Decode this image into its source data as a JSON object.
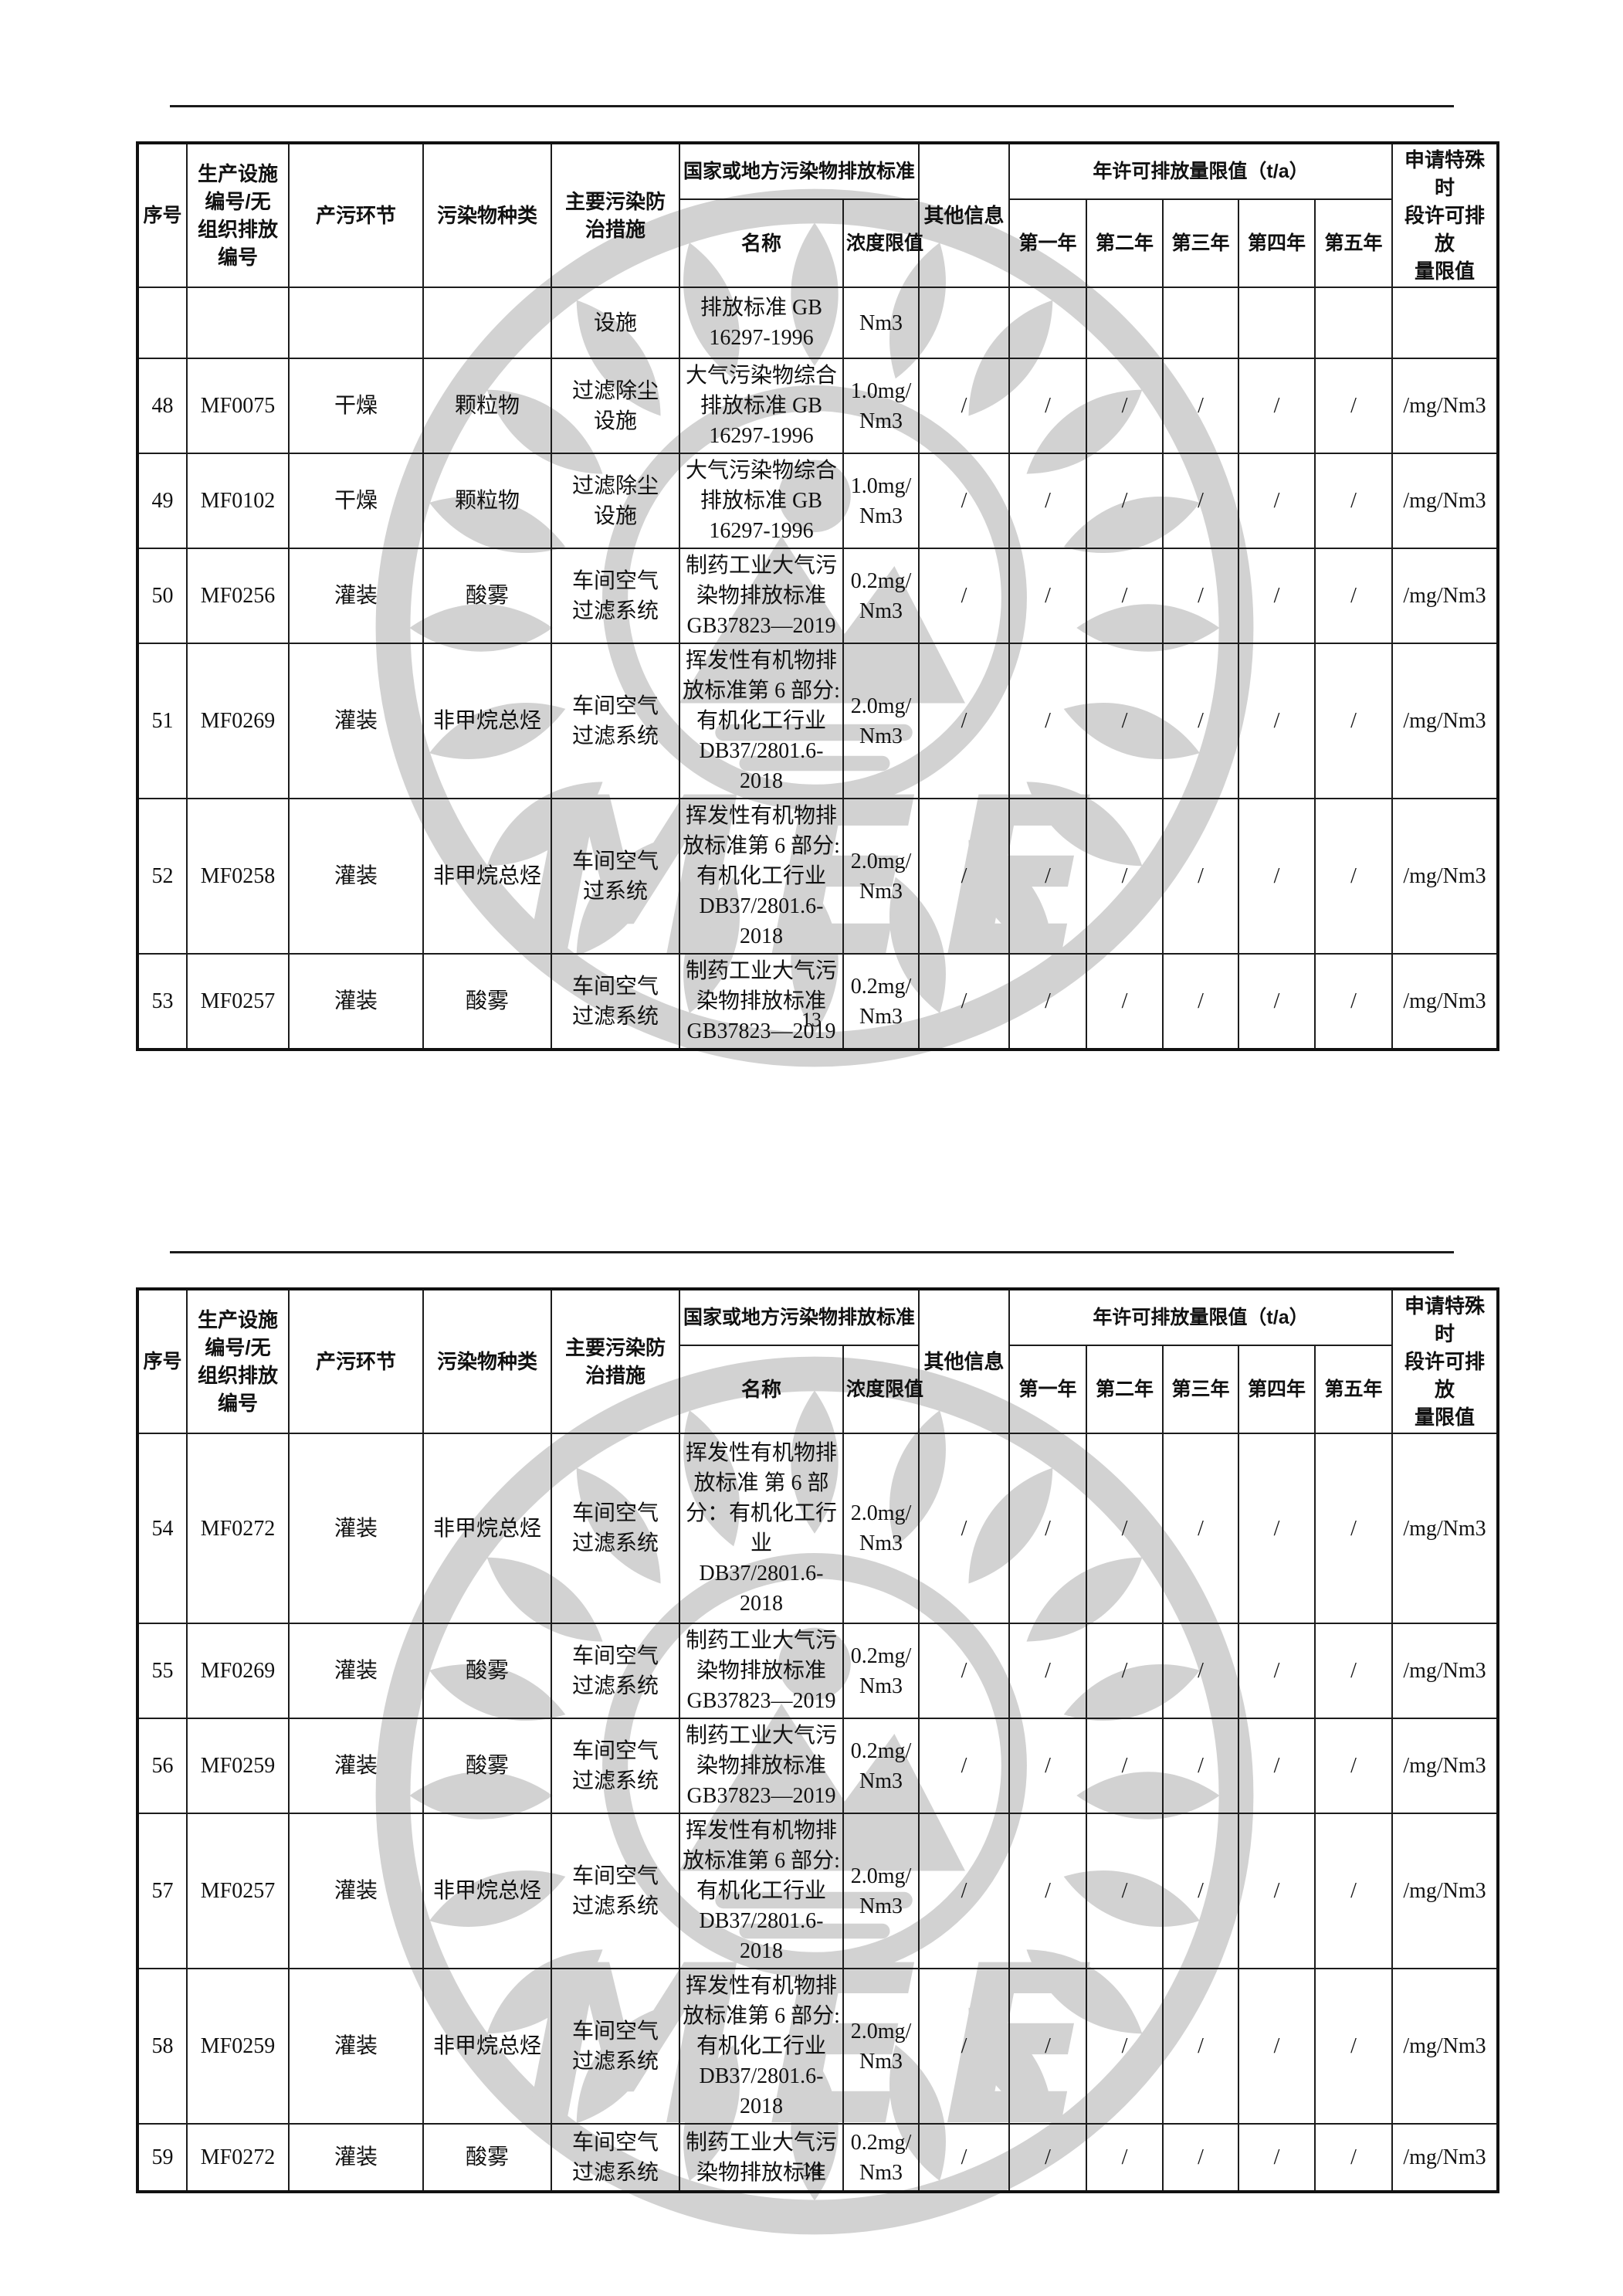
{
  "watermark": {
    "text": "MEE",
    "color": "#d2d2d2"
  },
  "table_header": {
    "seq": "序号",
    "facility_no": "生产设施\n编号/无\n组织排放\n编号",
    "process": "产污环节",
    "pollutant_type": "污染物种类",
    "measure": "主要污染防\n治措施",
    "standard_group": "国家或地方污染物排放标准",
    "standard_name": "名称",
    "concentration_limit": "浓度限值",
    "other_info": "其他信息",
    "annual_limit_group": "年许可排放量限值（t/a）",
    "year1": "第一年",
    "year2": "第二年",
    "year3": "第三年",
    "year4": "第四年",
    "year5": "第五年",
    "special": "申请特殊时\n段许可排放\n量限值"
  },
  "pages": [
    {
      "page_number": "13",
      "rows": [
        {
          "seq": "",
          "no": "",
          "process": "",
          "pollutant": "",
          "measure": "设施",
          "name": "排放标准 GB\n16297-1996",
          "limit": "Nm3",
          "other": "",
          "y1": "",
          "y2": "",
          "y3": "",
          "y4": "",
          "y5": "",
          "special": ""
        },
        {
          "seq": "48",
          "no": "MF0075",
          "process": "干燥",
          "pollutant": "颗粒物",
          "measure": "过滤除尘\n设施",
          "name": "大气污染物综合\n排放标准 GB\n16297-1996",
          "limit": "1.0mg/\nNm3",
          "other": "/",
          "y1": "/",
          "y2": "/",
          "y3": "/",
          "y4": "/",
          "y5": "/",
          "special": "/mg/Nm3"
        },
        {
          "seq": "49",
          "no": "MF0102",
          "process": "干燥",
          "pollutant": "颗粒物",
          "measure": "过滤除尘\n设施",
          "name": "大气污染物综合\n排放标准 GB\n16297-1996",
          "limit": "1.0mg/\nNm3",
          "other": "/",
          "y1": "/",
          "y2": "/",
          "y3": "/",
          "y4": "/",
          "y5": "/",
          "special": "/mg/Nm3"
        },
        {
          "seq": "50",
          "no": "MF0256",
          "process": "灌装",
          "pollutant": "酸雾",
          "measure": "车间空气\n过滤系统",
          "name": "制药工业大气污\n染物排放标准\nGB37823—2019",
          "limit": "0.2mg/\nNm3",
          "other": "/",
          "y1": "/",
          "y2": "/",
          "y3": "/",
          "y4": "/",
          "y5": "/",
          "special": "/mg/Nm3"
        },
        {
          "seq": "51",
          "no": "MF0269",
          "process": "灌装",
          "pollutant": "非甲烷总烃",
          "measure": "车间空气\n过滤系统",
          "name": "挥发性有机物排\n放标准第 6 部分:\n有机化工行业\nDB37/2801.6-\n2018",
          "limit": "2.0mg/\nNm3",
          "other": "/",
          "y1": "/",
          "y2": "/",
          "y3": "/",
          "y4": "/",
          "y5": "/",
          "special": "/mg/Nm3"
        },
        {
          "seq": "52",
          "no": "MF0258",
          "process": "灌装",
          "pollutant": "非甲烷总烃",
          "measure": "车间空气\n过系统",
          "name": "挥发性有机物排\n放标准第 6 部分:\n有机化工行业\nDB37/2801.6-\n2018",
          "limit": "2.0mg/\nNm3",
          "other": "/",
          "y1": "/",
          "y2": "/",
          "y3": "/",
          "y4": "/",
          "y5": "/",
          "special": "/mg/Nm3"
        },
        {
          "seq": "53",
          "no": "MF0257",
          "process": "灌装",
          "pollutant": "酸雾",
          "measure": "车间空气\n过滤系统",
          "name": "制药工业大气污\n染物排放标准\nGB37823—2019",
          "limit": "0.2mg/\nNm3",
          "other": "/",
          "y1": "/",
          "y2": "/",
          "y3": "/",
          "y4": "/",
          "y5": "/",
          "special": "/mg/Nm3"
        }
      ]
    },
    {
      "page_number": "14",
      "rows": [
        {
          "seq": "54",
          "no": "MF0272",
          "process": "灌装",
          "pollutant": "非甲烷总烃",
          "measure": "车间空气\n过滤系统",
          "name": "挥发性有机物排\n放标准 第 6 部\n分：有机化工行\n业\nDB37/2801.6-\n2018",
          "limit": "2.0mg/\nNm3",
          "other": "/",
          "y1": "/",
          "y2": "/",
          "y3": "/",
          "y4": "/",
          "y5": "/",
          "special": "/mg/Nm3"
        },
        {
          "seq": "55",
          "no": "MF0269",
          "process": "灌装",
          "pollutant": "酸雾",
          "measure": "车间空气\n过滤系统",
          "name": "制药工业大气污\n染物排放标准\nGB37823—2019",
          "limit": "0.2mg/\nNm3",
          "other": "/",
          "y1": "/",
          "y2": "/",
          "y3": "/",
          "y4": "/",
          "y5": "/",
          "special": "/mg/Nm3"
        },
        {
          "seq": "56",
          "no": "MF0259",
          "process": "灌装",
          "pollutant": "酸雾",
          "measure": "车间空气\n过滤系统",
          "name": "制药工业大气污\n染物排放标准\nGB37823—2019",
          "limit": "0.2mg/\nNm3",
          "other": "/",
          "y1": "/",
          "y2": "/",
          "y3": "/",
          "y4": "/",
          "y5": "/",
          "special": "/mg/Nm3"
        },
        {
          "seq": "57",
          "no": "MF0257",
          "process": "灌装",
          "pollutant": "非甲烷总烃",
          "measure": "车间空气\n过滤系统",
          "name": "挥发性有机物排\n放标准第 6 部分:\n有机化工行业\nDB37/2801.6-\n2018",
          "limit": "2.0mg/\nNm3",
          "other": "/",
          "y1": "/",
          "y2": "/",
          "y3": "/",
          "y4": "/",
          "y5": "/",
          "special": "/mg/Nm3"
        },
        {
          "seq": "58",
          "no": "MF0259",
          "process": "灌装",
          "pollutant": "非甲烷总烃",
          "measure": "车间空气\n过滤系统",
          "name": "挥发性有机物排\n放标准第 6 部分:\n有机化工行业\nDB37/2801.6-\n2018",
          "limit": "2.0mg/\nNm3",
          "other": "/",
          "y1": "/",
          "y2": "/",
          "y3": "/",
          "y4": "/",
          "y5": "/",
          "special": "/mg/Nm3"
        },
        {
          "seq": "59",
          "no": "MF0272",
          "process": "灌装",
          "pollutant": "酸雾",
          "measure": "车间空气\n过滤系统",
          "name": "制药工业大气污\n染物排放标准",
          "limit": "0.2mg/\nNm3",
          "other": "/",
          "y1": "/",
          "y2": "/",
          "y3": "/",
          "y4": "/",
          "y5": "/",
          "special": "/mg/Nm3"
        }
      ]
    }
  ]
}
